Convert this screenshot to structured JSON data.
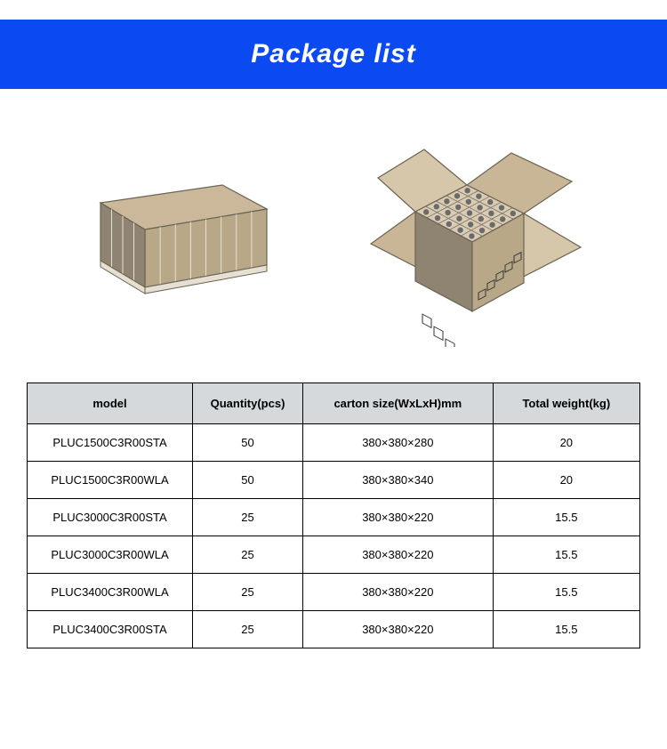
{
  "banner": {
    "title": "Package list",
    "bg_color": "#0a4af0",
    "title_color": "#ffffff",
    "title_fontsize": 30
  },
  "images": {
    "closed_box": {
      "lid_color": "#cbb89b",
      "side_color_light": "#b8a888",
      "side_color_dark": "#8f8472",
      "divider_color": "#e6e0d4",
      "outline": "#6b6351"
    },
    "open_box": {
      "flap_outer": "#c9b697",
      "flap_inner": "#d7c7aa",
      "body_light": "#b8a888",
      "body_dark": "#8f8472",
      "grid_color": "#d8ccb5",
      "grid_line": "#7a6f5c",
      "item_color": "#6b6b6b",
      "label_color": "#333333",
      "outline": "#6b6351"
    }
  },
  "table": {
    "header_bg": "#d5d9dc",
    "border_color": "#000000",
    "col_widths": [
      "27%",
      "18%",
      "31%",
      "24%"
    ],
    "columns": [
      "model",
      "Quantity(pcs)",
      "carton size(WxLxH)mm",
      "Total weight(kg)"
    ],
    "rows": [
      [
        "PLUC1500C3R00STA",
        "50",
        "380×380×280",
        "20"
      ],
      [
        "PLUC1500C3R00WLA",
        "50",
        "380×380×340",
        "20"
      ],
      [
        "PLUC3000C3R00STA",
        "25",
        "380×380×220",
        "15.5"
      ],
      [
        "PLUC3000C3R00WLA",
        "25",
        "380×380×220",
        "15.5"
      ],
      [
        "PLUC3400C3R00WLA",
        "25",
        "380×380×220",
        "15.5"
      ],
      [
        "PLUC3400C3R00STA",
        "25",
        "380×380×220",
        "15.5"
      ]
    ]
  }
}
